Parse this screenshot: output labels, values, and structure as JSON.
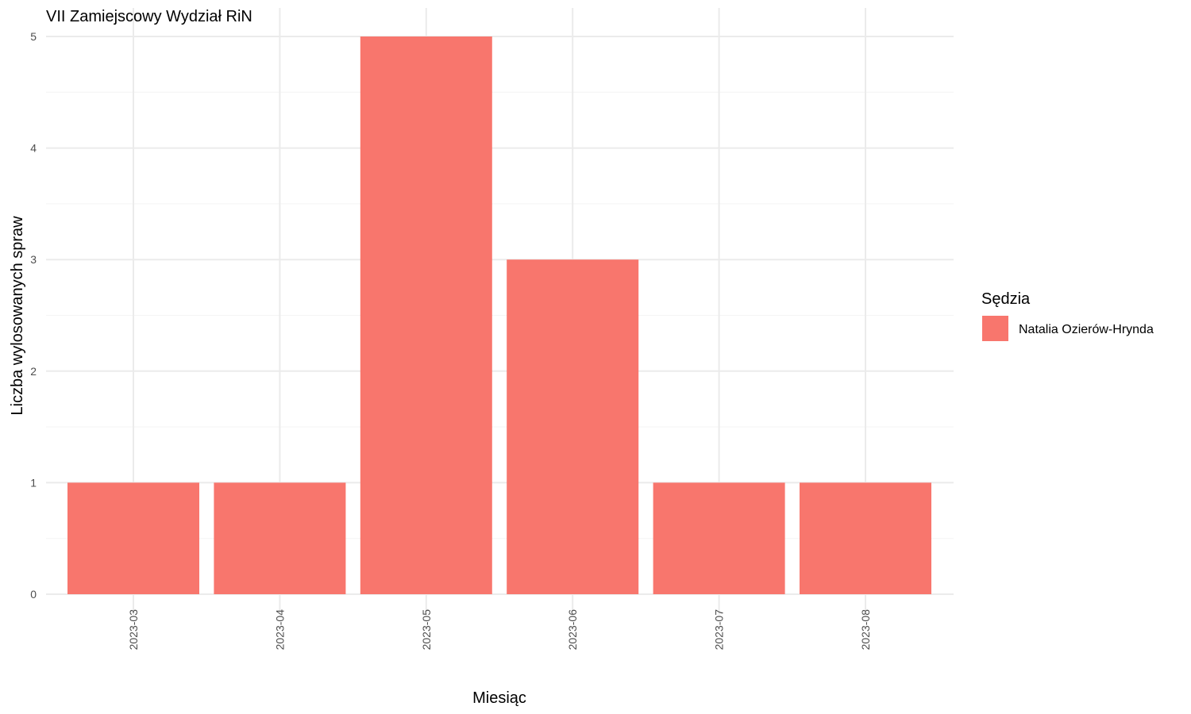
{
  "chart_data": {
    "type": "bar",
    "title": "VII Zamiejscowy Wydział RiN",
    "xlabel": "Miesiąc",
    "ylabel": "Liczba wylosowanych spraw",
    "categories": [
      "2023-03",
      "2023-04",
      "2023-05",
      "2023-06",
      "2023-07",
      "2023-08"
    ],
    "series": [
      {
        "name": "Natalia Ozierów-Hrynda",
        "values": [
          1,
          1,
          5,
          3,
          1,
          1
        ],
        "color": "#F8766D"
      }
    ],
    "ylim": [
      0,
      5
    ],
    "yticks": [
      "0",
      "1",
      "2",
      "3",
      "4",
      "5"
    ],
    "grid": true,
    "legend": {
      "title": "Sędzia",
      "position": "right"
    },
    "x_tick_rotation": "vertical"
  }
}
